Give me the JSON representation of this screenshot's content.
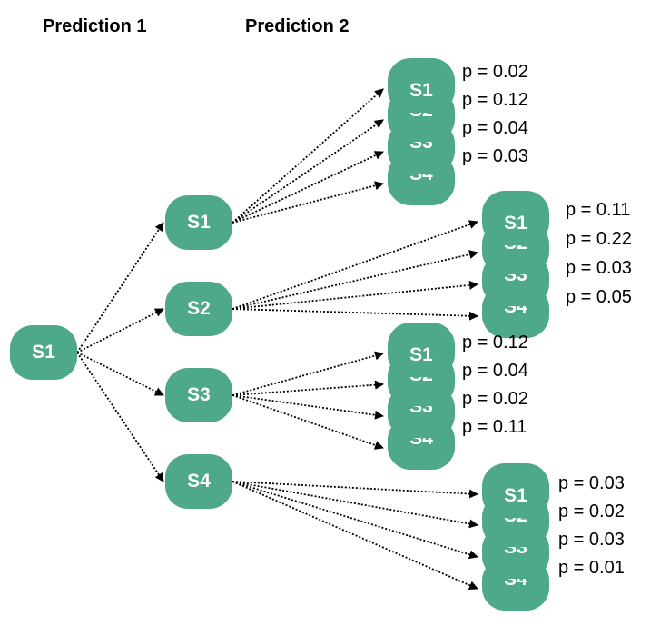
{
  "headings": {
    "prediction_1": "Prediction 1",
    "prediction_2": "Prediction 2"
  },
  "colors": {
    "node_fill": "#4ea88a",
    "node_text": "#ffffff",
    "edge": "#000000"
  },
  "root": {
    "label": "S1"
  },
  "level1": [
    {
      "label": "S1"
    },
    {
      "label": "S2"
    },
    {
      "label": "S3"
    },
    {
      "label": "S4"
    }
  ],
  "level2": [
    {
      "parent": "S1",
      "children": [
        {
          "label": "S1",
          "p": "p = 0.02"
        },
        {
          "label": "S2",
          "p": "p = 0.12"
        },
        {
          "label": "S3",
          "p": "p = 0.04"
        },
        {
          "label": "S4",
          "p": "p = 0.03"
        }
      ]
    },
    {
      "parent": "S2",
      "children": [
        {
          "label": "S1",
          "p": "p = 0.11"
        },
        {
          "label": "S2",
          "p": "p = 0.22"
        },
        {
          "label": "S3",
          "p": "p = 0.03"
        },
        {
          "label": "S4",
          "p": "p = 0.05"
        }
      ]
    },
    {
      "parent": "S3",
      "children": [
        {
          "label": "S1",
          "p": "p = 0.12"
        },
        {
          "label": "S2",
          "p": "p = 0.04"
        },
        {
          "label": "S3",
          "p": "p = 0.02"
        },
        {
          "label": "S4",
          "p": "p = 0.11"
        }
      ]
    },
    {
      "parent": "S4",
      "children": [
        {
          "label": "S1",
          "p": "p = 0.03"
        },
        {
          "label": "S2",
          "p": "p = 0.02"
        },
        {
          "label": "S3",
          "p": "p = 0.03"
        },
        {
          "label": "S4",
          "p": "p = 0.01"
        }
      ]
    }
  ]
}
